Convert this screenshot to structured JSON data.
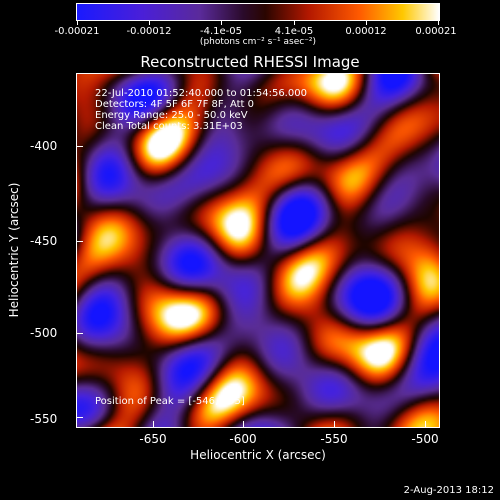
{
  "colorbar": {
    "tick_labels": [
      "-0.00021",
      "-0.00012",
      "-4.1e-05",
      "4.1e-05",
      "0.00012",
      "0.00021"
    ],
    "unit": "(photons cm⁻² s⁻¹ asec⁻²)"
  },
  "chart_data": {
    "type": "heatmap",
    "title": "Reconstructed RHESSI Image",
    "xlabel": "Heliocentric X (arcsec)",
    "ylabel": "Heliocentric Y (arcsec)",
    "xlim": [
      -686,
      -497
    ],
    "ylim": [
      -553,
      -367
    ],
    "x_ticks": [
      "-650",
      "-600",
      "-550",
      "-500"
    ],
    "y_ticks": [
      "-400",
      "-450",
      "-500",
      "-550"
    ],
    "value_range": [
      -0.00021,
      0.00021
    ],
    "peak": [
      -546,
      -495
    ]
  },
  "info": {
    "line1": "22-Jul-2010 01:52:40.000 to 01:54:56.000",
    "line2": "Detectors: 4F 5F 6F 7F 8F, Att 0",
    "line3": "Energy Range: 25.0 - 50.0 keV",
    "line4": "Clean     Total counts: 3.31E+03"
  },
  "peak_text": "Position of Peak = [-546,-495]",
  "date": "2-Aug-2013 18:12"
}
